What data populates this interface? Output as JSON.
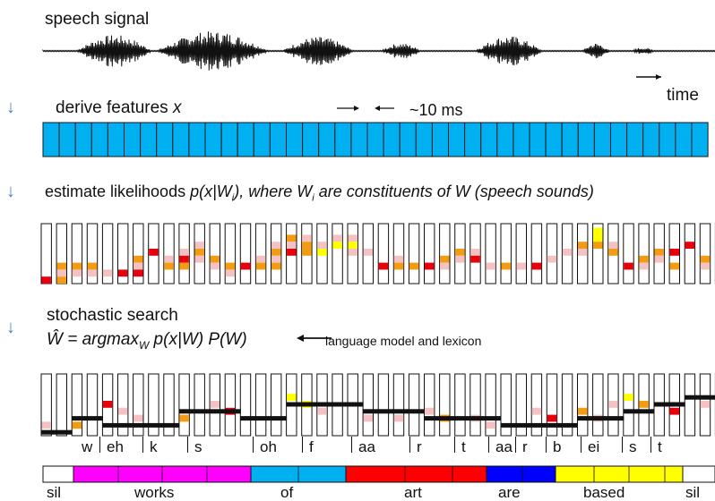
{
  "steps": {
    "signal": "speech signal",
    "time": "time",
    "features_prefix": "derive features ",
    "features_var": "x",
    "interval": "~10 ms",
    "likelihoods_prefix": "estimate likelihoods ",
    "likelihoods_formula_a": "p(x|W",
    "likelihoods_sub": "i",
    "likelihoods_formula_b": "), where W",
    "likelihoods_sub2": "i",
    "likelihoods_formula_c": " are constituents of W (speech sounds)",
    "search": "stochastic search",
    "search_formula_a": "Ŵ = argmax",
    "search_sub": "W",
    "search_formula_b": " p(x|W) P(W)",
    "lm_label": "language model and lexicon"
  },
  "phones": [
    "w",
    "eh",
    "k",
    "s",
    "oh",
    "f",
    "aa",
    "r",
    "t",
    "aa",
    "r",
    "b",
    "ei",
    "s",
    "t"
  ],
  "words": [
    "sil",
    "works",
    "of",
    "art",
    "are",
    "based",
    "sil"
  ],
  "colors": {
    "feature_fill": "#00b0f0",
    "works": "#ff00ff",
    "of": "#00b0f0",
    "art": "#ff0000",
    "are": "#0000ff",
    "based": "#ffff00",
    "sil": "#ffffff",
    "arrow": "#4f81bd",
    "cell_red": "#e8000b",
    "cell_orange": "#f39c12",
    "cell_yellow": "#ffff00",
    "cell_pink": "#f4c2c2"
  }
}
